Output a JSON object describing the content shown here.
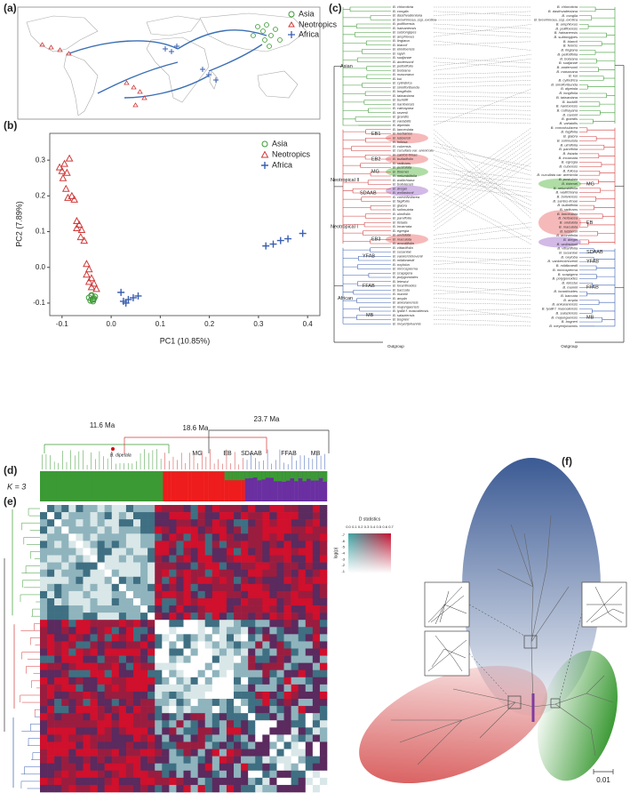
{
  "panels": {
    "a": "(a)",
    "b": "(b)",
    "c": "(c)",
    "d": "(d)",
    "e": "(e)",
    "f": "(f)"
  },
  "map": {
    "legend": [
      "Asia",
      "Neotropics",
      "Africa"
    ]
  },
  "chart_data": {
    "type": "scatter",
    "xlabel": "PC1 (10.85%)",
    "ylabel": "PC2 (7.89%)",
    "xlim": [
      -0.125,
      0.425
    ],
    "ylim": [
      -0.135,
      0.375
    ],
    "xticks": [
      -0.1,
      {
        "value": 0,
        "label": "0.0"
      },
      0.1,
      0.2,
      0.3,
      0.4
    ],
    "yticks": [
      -0.1,
      {
        "value": 0,
        "label": "0.0"
      },
      0.1,
      0.2,
      0.3
    ],
    "legend": "upper right",
    "series": [
      {
        "name": "Asia",
        "color": "#3c9a35",
        "marker": "circle",
        "x": [
          -0.045,
          -0.04,
          -0.038,
          -0.035,
          -0.042,
          -0.037,
          -0.033,
          -0.04,
          -0.036
        ],
        "y": [
          -0.085,
          -0.08,
          -0.09,
          -0.087,
          -0.093,
          -0.095,
          -0.082,
          -0.078,
          -0.09
        ]
      },
      {
        "name": "Neotropics",
        "color": "#d03a3a",
        "marker": "triangle",
        "x": [
          -0.105,
          -0.1,
          -0.095,
          -0.09,
          -0.085,
          -0.098,
          -0.092,
          -0.088,
          -0.075,
          -0.08,
          -0.07,
          -0.065,
          -0.07,
          -0.06,
          -0.062,
          -0.055,
          -0.05,
          -0.045,
          -0.05,
          -0.04,
          -0.045,
          -0.035,
          -0.04,
          -0.03
        ],
        "y": [
          0.28,
          0.27,
          0.29,
          0.265,
          0.305,
          0.25,
          0.22,
          0.195,
          0.19,
          0.2,
          0.13,
          0.12,
          0.11,
          0.105,
          0.085,
          0.075,
          0.01,
          -0.005,
          -0.02,
          -0.03,
          -0.04,
          -0.045,
          -0.055,
          -0.06
        ]
      },
      {
        "name": "Africa",
        "color": "#3a5fb0",
        "marker": "plus",
        "x": [
          0.02,
          0.025,
          0.03,
          0.035,
          0.045,
          0.055,
          0.315,
          0.33,
          0.345,
          0.36,
          0.39
        ],
        "y": [
          -0.07,
          -0.095,
          -0.1,
          -0.09,
          -0.085,
          -0.08,
          0.06,
          0.065,
          0.075,
          0.08,
          0.095
        ]
      }
    ]
  },
  "tanglegram": {
    "left_tips": [
      "B. chloroticta",
      "B. congila",
      "B. dasthvadeniana",
      "B. brevirimosa_ssp_exotica",
      "B. polifloensis",
      "B. hainanensis",
      "B. subtongipes",
      "B. amphioxus",
      "B. lingiana",
      "B. blancii",
      "B. elmiloensis",
      "B. rajah",
      "B. sudjanae",
      "B. andersonii",
      "B. pellotifolia",
      "B. boisiana",
      "B. masonana",
      "B. kui",
      "B. cylindrica",
      "B. sinofloribunda",
      "B. longifolia",
      "B. taiwaniana",
      "B. burkillii",
      "B. nantoensis",
      "B. cathayana",
      "B. ravenii",
      "B. grandis",
      "B. variabilis",
      "B. dipetala",
      "B. lanceolata",
      "B. herbacea",
      "B. lubbersii",
      "B. foliosa",
      "B. cubensis",
      "B. cucullata var. arenicola",
      "B. santos-limae",
      "B. bullatifolia",
      "B. radicans",
      "B. pustulata",
      "B. thiemei",
      "B. nelumbiifolia",
      "B. wallichiana",
      "B. boliviensis",
      "B. dregei",
      "B. wollastonii",
      "B. convolvulacea",
      "B. fagifolia",
      "B. glabra",
      "B. solimutata",
      "B. ulmifolia",
      "B. parvifolia",
      "B. listada",
      "B. incarnata",
      "B. egregia",
      "B. undulata",
      "B. maculata",
      "B. aconitifolia",
      "B. vittariifolia",
      "B. susaniae",
      "B. vankerckhovenii",
      "B. mildbraedii",
      "B. oxyloba",
      "B. microsperma",
      "B. scapigera",
      "B. polygonoides",
      "B. letestui",
      "B. loranthoides",
      "B. baccata",
      "B. mannii",
      "B. ampla",
      "B. ankaranensis",
      "B. majungaensis",
      "B. lyallii f. masoalensis",
      "B. salaziensis",
      "B. bogneri",
      "B. meyerijohannis"
    ],
    "right_tips": [
      "B. chloroticta",
      "B. dasthvadeniana",
      "B. congila",
      "B. brevirimosa_ssp_exotica",
      "B. amphioxus",
      "B. polifloensis",
      "B. hainanensis",
      "B. subtongipes",
      "B. blancii",
      "B. fenicis",
      "B. lingiana",
      "B. pellotifolia",
      "B. boisiana",
      "B. sudjanae",
      "B. andersonii",
      "B. masonana",
      "B. kui",
      "B. cylindrica",
      "B. sinofloribunda",
      "B. dipetala",
      "B. longifolia",
      "B. taiwaniana",
      "B. burkillii",
      "B. nantoensis",
      "B. cathayana",
      "B. ravenii",
      "B. grandis",
      "B. variabilis",
      "B. convolvulacea",
      "B. fagifolia",
      "B. glabra",
      "B. solimutata",
      "B. ulmifolia",
      "B. parvifolia",
      "B. listada",
      "B. incarnata",
      "B. egregia",
      "B. cubensis",
      "B. foliosa",
      "B. cucullata var. arenicola",
      "B. pustulata",
      "B. thiemei",
      "B. nelumbiifolia",
      "B. wallichiana",
      "B. boliviensis",
      "B. santos-limae",
      "B. bullatifolia",
      "B. radicans",
      "B. lanceolata",
      "B. herbacea",
      "B. undulata",
      "B. maculata",
      "B. lubbersii",
      "B. aconitifolia",
      "B. dregei",
      "B. wollastonii",
      "B. vittariifolia",
      "B. susaniae",
      "B. oxyloba",
      "B. vankerckhovenii",
      "B. mildbraedii",
      "B. microsperma",
      "B. scapigera",
      "B. polygonoides",
      "B. letestui",
      "B. mannii",
      "B. loranthoides",
      "B. baccata",
      "B. ampla",
      "B. ankaranensis",
      "B. lyallii f. masoalensis",
      "B. salaziensis",
      "B. majungaensis",
      "B. bogneri",
      "B. meyerijohannis"
    ],
    "left_clades": [
      "Asian",
      "EB1",
      "EB2",
      "MG",
      "Neotropical II",
      "SDAAB",
      "EB3",
      "Neotropical I",
      "YFAB",
      "FFAB",
      "African",
      "MB"
    ],
    "right_clades": [
      "MG",
      "EB",
      "SDAAB",
      "YFAB",
      "FFAB",
      "MB"
    ],
    "outgroup_left": "Outgroup",
    "outgroup_right": "Outgroup"
  },
  "structure": {
    "ages": [
      "11.6 Ma",
      "18.6 Ma",
      "23.7 Ma"
    ],
    "tip_label": "B. dipetala",
    "clades": [
      "MG",
      "EB",
      "SDAAB",
      "FFAB",
      "MB"
    ],
    "k_label": "K = 3"
  },
  "heatmap": {
    "colorbar_title": "D statistics",
    "colorbar_ticks": [
      "0.0",
      "0.1",
      "0.2",
      "0.3",
      "0.4",
      "0.5",
      "0.6",
      "0.7"
    ],
    "p_label": "log(p)",
    "p_ticks": [
      "-7",
      "-6",
      "-5",
      "-4",
      "-3",
      "-2",
      "-1"
    ]
  },
  "network": {
    "scale_label": "0.01"
  }
}
